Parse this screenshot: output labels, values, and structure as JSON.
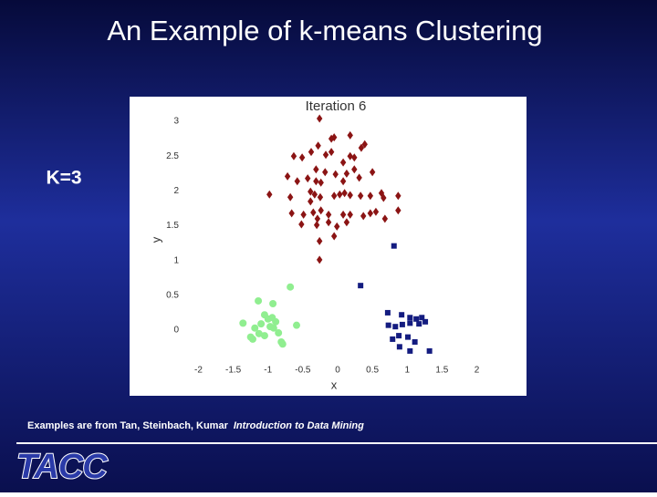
{
  "slide": {
    "title": "An Example of k-means Clustering",
    "label": "K=3",
    "footer": [
      "Examples are from Tan, Steinbach, Kumar",
      "Introduction to Data Mining"
    ],
    "logo": "TACC"
  },
  "chart_data": {
    "type": "scatter",
    "title": "Iteration 6",
    "x_label": "x",
    "y_label": "y",
    "xlim": [
      -2.5,
      2.5
    ],
    "ylim": [
      -0.5,
      3.2
    ],
    "xticks": [
      -2,
      -1.5,
      -1,
      -0.5,
      0,
      0.5,
      1,
      1.5,
      2
    ],
    "yticks": [
      0,
      0.5,
      1,
      1.5,
      2,
      2.5,
      3
    ],
    "grid": false,
    "series": [
      {
        "color": "#8b1414",
        "marker": "diamond",
        "x": [
          -0.26,
          -0.05,
          -0.09,
          -0.28,
          0.18,
          0.39,
          0.34,
          -0.63,
          -0.51,
          -0.38,
          -0.17,
          -0.09,
          0.18,
          0.24,
          0.08,
          -0.31,
          -0.18,
          -0.03,
          0.13,
          0.24,
          -0.72,
          -0.43,
          -0.58,
          -0.31,
          -0.24,
          0.08,
          0.31,
          0.5,
          -0.98,
          -0.68,
          -0.39,
          -0.33,
          -0.25,
          -0.39,
          -0.05,
          0.03,
          0.1,
          0.18,
          0.33,
          0.47,
          0.63,
          0.66,
          0.87,
          -0.66,
          -0.49,
          -0.35,
          -0.24,
          -0.29,
          -0.13,
          0.08,
          0.18,
          0.37,
          0.47,
          0.55,
          0.68,
          0.87,
          -0.52,
          -0.3,
          -0.13,
          -0.01,
          0.13,
          -0.26,
          -0.05,
          -0.26
        ],
        "y": [
          3.04,
          2.77,
          2.75,
          2.65,
          2.8,
          2.67,
          2.62,
          2.5,
          2.48,
          2.56,
          2.52,
          2.56,
          2.5,
          2.48,
          2.41,
          2.31,
          2.27,
          2.24,
          2.25,
          2.31,
          2.21,
          2.18,
          2.14,
          2.14,
          2.12,
          2.14,
          2.19,
          2.27,
          1.95,
          1.91,
          1.99,
          1.95,
          1.91,
          1.85,
          1.93,
          1.95,
          1.97,
          1.94,
          1.93,
          1.93,
          1.97,
          1.9,
          1.93,
          1.68,
          1.66,
          1.69,
          1.72,
          1.6,
          1.66,
          1.66,
          1.66,
          1.64,
          1.68,
          1.7,
          1.6,
          1.72,
          1.52,
          1.51,
          1.55,
          1.49,
          1.55,
          1.28,
          1.35,
          1.01
        ]
      },
      {
        "color": "#141c80",
        "marker": "square",
        "x": [
          0.81,
          0.33,
          0.72,
          0.92,
          1.04,
          1.13,
          1.21,
          0.73,
          0.83,
          0.93,
          1.04,
          1.17,
          1.26,
          0.88,
          1.01,
          0.79,
          1.11,
          0.89,
          1.04,
          1.32
        ],
        "y": [
          1.21,
          0.64,
          0.25,
          0.22,
          0.18,
          0.16,
          0.18,
          0.07,
          0.05,
          0.08,
          0.1,
          0.09,
          0.12,
          -0.08,
          -0.1,
          -0.13,
          -0.17,
          -0.24,
          -0.3,
          -0.3
        ]
      },
      {
        "color": "#90ee90",
        "marker": "circle",
        "x": [
          -0.68,
          -0.93,
          -1.14,
          -1.36,
          -1.19,
          -1.05,
          -1.0,
          -0.94,
          -1.1,
          -0.92,
          -1.13,
          -1.22,
          -1.05,
          -0.85,
          -0.81,
          -0.79,
          -0.59,
          -1.25,
          -0.97,
          -0.89
        ],
        "y": [
          0.62,
          0.38,
          0.42,
          0.1,
          0.03,
          0.22,
          0.16,
          0.18,
          0.09,
          0.03,
          -0.05,
          -0.13,
          -0.08,
          -0.04,
          -0.17,
          -0.2,
          0.07,
          -0.1,
          0.05,
          0.12
        ]
      }
    ]
  }
}
